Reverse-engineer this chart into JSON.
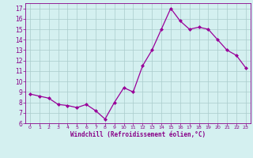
{
  "x": [
    0,
    1,
    2,
    3,
    4,
    5,
    6,
    7,
    8,
    9,
    10,
    11,
    12,
    13,
    14,
    15,
    16,
    17,
    18,
    19,
    20,
    21,
    22,
    23
  ],
  "y": [
    8.8,
    8.6,
    8.4,
    7.8,
    7.7,
    7.5,
    7.8,
    7.2,
    6.4,
    8.0,
    9.4,
    9.0,
    11.5,
    13.0,
    15.0,
    17.0,
    15.8,
    15.0,
    15.2,
    15.0,
    14.0,
    13.0,
    12.5,
    11.3
  ],
  "line_color": "#990099",
  "marker": "D",
  "marker_size": 2.0,
  "bg_color": "#d4f0f0",
  "grid_color": "#aacccc",
  "xlabel": "Windchill (Refroidissement éolien,°C)",
  "xlabel_color": "#880088",
  "tick_color": "#880088",
  "xlim": [
    -0.5,
    23.5
  ],
  "ylim": [
    6.0,
    17.5
  ],
  "yticks": [
    6,
    7,
    8,
    9,
    10,
    11,
    12,
    13,
    14,
    15,
    16,
    17
  ],
  "xticks": [
    0,
    1,
    2,
    3,
    4,
    5,
    6,
    7,
    8,
    9,
    10,
    11,
    12,
    13,
    14,
    15,
    16,
    17,
    18,
    19,
    20,
    21,
    22,
    23
  ],
  "figsize": [
    3.2,
    2.0
  ],
  "dpi": 100
}
